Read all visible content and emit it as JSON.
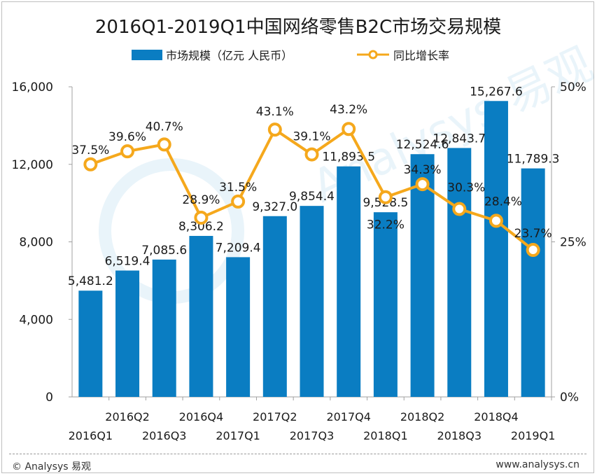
{
  "chart_data": {
    "type": "bar",
    "title": "2016Q1-2019Q1中国网络零售B2C市场交易规模",
    "categories": [
      "2016Q1",
      "2016Q2",
      "2016Q3",
      "2016Q4",
      "2017Q1",
      "2017Q2",
      "2017Q3",
      "2017Q4",
      "2018Q1",
      "2018Q2",
      "2018Q3",
      "2018Q4",
      "2019Q1"
    ],
    "series": [
      {
        "name": "市场规模（亿元 人民币）",
        "kind": "bar",
        "axis": "left",
        "color": "#0a7dc2",
        "values": [
          5481.2,
          6519.4,
          7085.6,
          8306.2,
          7209.4,
          9327.0,
          9854.4,
          11893.5,
          9528.5,
          12524.6,
          12843.7,
          15267.6,
          11789.3
        ],
        "labels": [
          "5,481.2",
          "6,519.4",
          "7,085.6",
          "8,306.2",
          "7,209.4",
          "9,327.0",
          "9,854.4",
          "11,893.5",
          "9,528.5",
          "12,524.6",
          "12,843.7",
          "15,267.6",
          "11,789.3"
        ]
      },
      {
        "name": "同比增长率",
        "kind": "line",
        "axis": "right",
        "color": "#f5a81c",
        "values": [
          37.5,
          39.6,
          40.7,
          28.9,
          31.5,
          43.1,
          39.1,
          43.2,
          32.2,
          34.3,
          30.3,
          28.4,
          23.7
        ],
        "labels": [
          "37.5%",
          "39.6%",
          "40.7%",
          "28.9%",
          "31.5%",
          "43.1%",
          "39.1%",
          "43.2%",
          "32.2%",
          "34.3%",
          "30.3%",
          "28.4%",
          "23.7%"
        ]
      }
    ],
    "y_left": {
      "ylim": [
        0,
        16000
      ],
      "ticks": [
        0,
        4000,
        8000,
        12000,
        16000
      ],
      "tick_labels": [
        "0",
        "4,000",
        "8,000",
        "12,000",
        "16,000"
      ]
    },
    "y_right": {
      "ylim": [
        0,
        50
      ],
      "ticks": [
        0,
        25,
        50
      ],
      "tick_labels": [
        "0%",
        "25%",
        "50%"
      ]
    },
    "legend": "top",
    "grid": false
  },
  "watermark": "Analysys 易观",
  "footer": {
    "left": "© Analysys 易观",
    "right": "www.analysys.cn"
  }
}
